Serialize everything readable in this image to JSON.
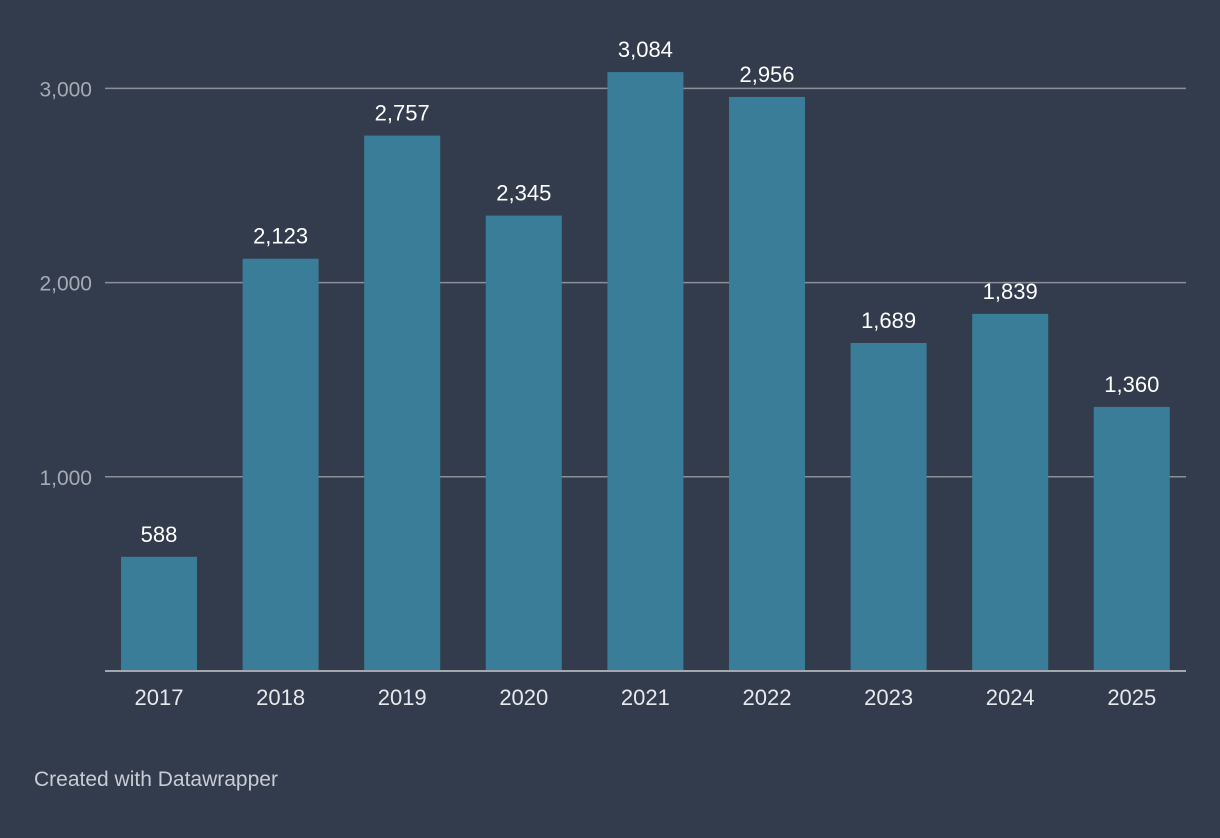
{
  "colors": {
    "background": "#333c4d",
    "bar": "#3a7d98",
    "gridline": "#8a8f98",
    "baseline": "#a3a8b0",
    "y_tick_text": "#a6abb3",
    "x_tick_text": "#e6e8eb",
    "value_label": "#ffffff"
  },
  "chart_data": {
    "type": "bar",
    "title": "",
    "xlabel": "",
    "ylabel": "",
    "categories": [
      "2017",
      "2018",
      "2019",
      "2020",
      "2021",
      "2022",
      "2023",
      "2024",
      "2025"
    ],
    "values": [
      588,
      2123,
      2757,
      2345,
      3084,
      2956,
      1689,
      1839,
      1360
    ],
    "value_labels": [
      "588",
      "2,123",
      "2,757",
      "2,345",
      "3,084",
      "2,956",
      "1,689",
      "1,839",
      "1,360"
    ],
    "ylim": [
      0,
      3000
    ],
    "y_ticks": [
      1000,
      2000,
      3000
    ],
    "y_tick_labels": [
      "1,000",
      "2,000",
      "3,000"
    ],
    "grid": true,
    "legend": "none"
  },
  "footer": {
    "credit": "Created with Datawrapper"
  }
}
